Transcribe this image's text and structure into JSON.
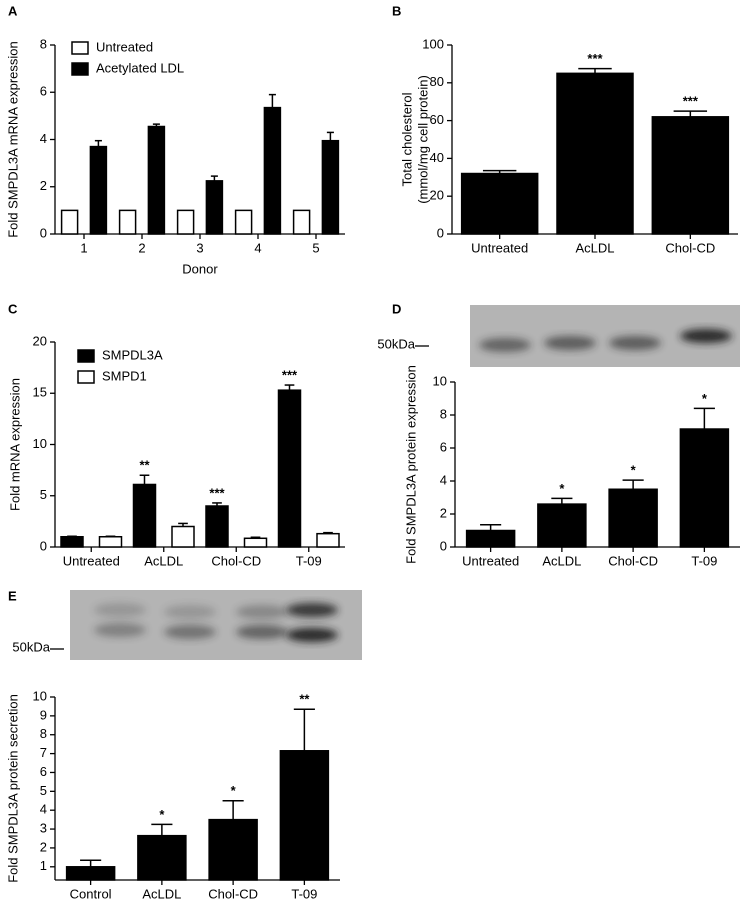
{
  "chart_data": [
    {
      "panel": "A",
      "type": "bar",
      "categories": [
        "1",
        "2",
        "3",
        "4",
        "5"
      ],
      "series": [
        {
          "name": "Untreated",
          "color": "#ffffff",
          "values": [
            1,
            1,
            1,
            1,
            1
          ]
        },
        {
          "name": "Acetylated LDL",
          "color": "#000000",
          "values": [
            3.7,
            4.55,
            2.25,
            5.35,
            3.95
          ],
          "errors": [
            0.25,
            0.1,
            0.2,
            0.55,
            0.35
          ]
        }
      ],
      "xlabel": "Donor",
      "ylabel": "Fold SMPDL3A mRNA expression",
      "ylim": [
        0,
        8
      ],
      "yticks": [
        0,
        2,
        4,
        6,
        8
      ],
      "legend": "upper left"
    },
    {
      "panel": "B",
      "type": "bar",
      "categories": [
        "Untreated",
        "AcLDL",
        "Chol-CD"
      ],
      "values": [
        32,
        85,
        62
      ],
      "errors": [
        1.5,
        2.5,
        3
      ],
      "annotations": [
        null,
        "***",
        "***"
      ],
      "color": "#000000",
      "ylabel": [
        "Total cholesterol",
        "(mmol/mg cell protein)"
      ],
      "ylim": [
        0,
        100
      ],
      "yticks": [
        0,
        20,
        40,
        60,
        80,
        100
      ]
    },
    {
      "panel": "C",
      "type": "bar",
      "categories": [
        "Untreated",
        "AcLDL",
        "Chol-CD",
        "T-09"
      ],
      "series": [
        {
          "name": "SMPDL3A",
          "color": "#000000",
          "values": [
            1,
            6.1,
            4.0,
            15.3
          ],
          "errors": [
            0.05,
            0.9,
            0.3,
            0.5
          ],
          "annotations": [
            null,
            "**",
            "***",
            "***"
          ]
        },
        {
          "name": "SMPD1",
          "color": "#ffffff",
          "values": [
            1,
            2.0,
            0.85,
            1.3
          ],
          "errors": [
            0.05,
            0.3,
            0.1,
            0.1
          ]
        }
      ],
      "ylabel": "Fold mRNA expression",
      "ylim": [
        0,
        20
      ],
      "yticks": [
        0,
        5,
        10,
        15,
        20
      ],
      "legend": "upper left"
    },
    {
      "panel": "D",
      "type": "bar",
      "blot_label": "50kDa",
      "categories": [
        "Untreated",
        "AcLDL",
        "Chol-CD",
        "T-09"
      ],
      "values": [
        1.0,
        2.6,
        3.5,
        7.15
      ],
      "errors": [
        0.35,
        0.35,
        0.55,
        1.25
      ],
      "annotations": [
        null,
        "*",
        "*",
        "*"
      ],
      "color": "#000000",
      "ylabel": "Fold SMPDL3A protein expression",
      "ylim": [
        0,
        10
      ],
      "yticks": [
        0,
        2,
        4,
        6,
        8,
        10
      ]
    },
    {
      "panel": "E",
      "type": "bar",
      "blot_label": "50kDa",
      "categories": [
        "Control",
        "AcLDL",
        "Chol-CD",
        "T-09"
      ],
      "values": [
        1.0,
        2.65,
        3.5,
        7.15
      ],
      "errors": [
        0.35,
        0.6,
        1.0,
        2.2
      ],
      "annotations": [
        null,
        "*",
        "*",
        "**"
      ],
      "color": "#000000",
      "ylabel": "Fold SMPDL3A protein secretion",
      "ylim": [
        0.3,
        10
      ],
      "yticks": [
        1,
        2,
        3,
        4,
        5,
        6,
        7,
        8,
        9,
        10
      ]
    }
  ]
}
